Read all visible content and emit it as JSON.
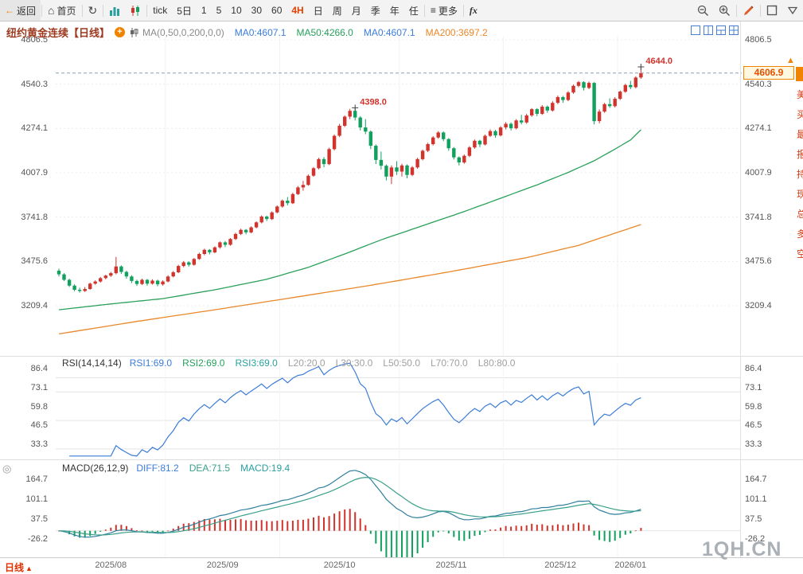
{
  "colors": {
    "up": "#d0342c",
    "down": "#12a05e",
    "ma50": "#2aa05a",
    "ma200": "#e8882a",
    "rsi": "#3b7dd8",
    "diff": "#2f7f9e",
    "dea": "#3aa08a",
    "price_line": "#8fa0ac",
    "annotation": "#d0342c",
    "accent": "#f08300"
  },
  "toolbar": {
    "back": "返回",
    "home": "首页",
    "periods": [
      {
        "t": "tick"
      },
      {
        "t": "5日"
      },
      {
        "t": "1"
      },
      {
        "t": "5"
      },
      {
        "t": "10"
      },
      {
        "t": "30"
      },
      {
        "t": "60"
      },
      {
        "t": "4H",
        "c": "#e04000"
      },
      {
        "t": "日"
      },
      {
        "t": "周"
      },
      {
        "t": "月"
      },
      {
        "t": "季"
      },
      {
        "t": "年"
      },
      {
        "t": "任"
      }
    ],
    "more": "更多",
    "fx": "fx"
  },
  "chart_header": {
    "title": "纽约黄金连续【日线】",
    "ma_label": "MA(0,50,0,200,0,0)",
    "ma_values": [
      {
        "t": "MA0:4607.1",
        "c": "#3b7dd8"
      },
      {
        "t": "MA50:4266.0",
        "c": "#27a05d"
      },
      {
        "t": "MA0:4607.1",
        "c": "#3b7dd8"
      },
      {
        "t": "MA200:3697.2",
        "c": "#e8882a"
      }
    ]
  },
  "main_axis": {
    "labels": [
      "4806.5",
      "4540.3",
      "4274.1",
      "4007.9",
      "3741.8",
      "3475.6",
      "3209.4"
    ]
  },
  "rsi": {
    "name": "RSI(14,14,14)",
    "values": [
      {
        "t": "RSI1:69.0",
        "c": "#3b7dd8"
      },
      {
        "t": "RSI2:69.0",
        "c": "#27a05d"
      },
      {
        "t": "RSI3:69.0",
        "c": "#2aa0a0"
      },
      {
        "t": "L20:20.0",
        "c": "#a0a0a0"
      },
      {
        "t": "L30:30.0",
        "c": "#a0a0a0"
      },
      {
        "t": "L50:50.0",
        "c": "#a0a0a0"
      },
      {
        "t": "L70:70.0",
        "c": "#a0a0a0"
      },
      {
        "t": "L80:80.0",
        "c": "#a0a0a0"
      }
    ],
    "axis": [
      "86.4",
      "73.1",
      "59.8",
      "46.5",
      "33.3"
    ],
    "ref_levels": [
      80,
      70,
      50,
      30
    ]
  },
  "macd": {
    "name": "MACD(26,12,9)",
    "values": [
      {
        "t": "DIFF:81.2",
        "c": "#3b7dd8"
      },
      {
        "t": "DEA:71.5",
        "c": "#3aa08a"
      },
      {
        "t": "MACD:19.4",
        "c": "#2aa0a0"
      }
    ],
    "axis": [
      "164.7",
      "101.1",
      "37.5",
      "-26.2"
    ]
  },
  "current_price": "4606.9",
  "watermark": "1QH.CN",
  "bottom": {
    "period_tab": "日线",
    "period_tab_arrow": "▲"
  },
  "right_strip": {
    "chars": [
      "美",
      "买",
      "最",
      "报",
      "持",
      "现",
      "总",
      "多",
      "空"
    ]
  },
  "chart_data": {
    "type": "candlestick",
    "symbol": "纽约黄金连续",
    "period": "日线",
    "last_price": 4606.9,
    "annotations": [
      {
        "index": 57,
        "price": 4398.0,
        "label": "4398.0"
      },
      {
        "index": 112,
        "price": 4644.0,
        "label": "4644.0"
      }
    ],
    "months": [
      {
        "label": "2025/08",
        "start": 0,
        "end": 20
      },
      {
        "label": "2025/09",
        "start": 21,
        "end": 42
      },
      {
        "label": "2025/10",
        "start": 43,
        "end": 65
      },
      {
        "label": "2025/11",
        "start": 66,
        "end": 85
      },
      {
        "label": "2025/12",
        "start": 86,
        "end": 107
      },
      {
        "label": "2026/01",
        "start": 108,
        "end": 112
      }
    ],
    "ma50_points": [
      [
        0,
        3185
      ],
      [
        10,
        3220
      ],
      [
        20,
        3252
      ],
      [
        30,
        3305
      ],
      [
        40,
        3368
      ],
      [
        48,
        3440
      ],
      [
        55,
        3520
      ],
      [
        62,
        3605
      ],
      [
        70,
        3690
      ],
      [
        78,
        3775
      ],
      [
        85,
        3855
      ],
      [
        92,
        3935
      ],
      [
        98,
        4010
      ],
      [
        103,
        4080
      ],
      [
        107,
        4150
      ],
      [
        110,
        4205
      ],
      [
        112,
        4266
      ]
    ],
    "ma200_points": [
      [
        0,
        3040
      ],
      [
        15,
        3115
      ],
      [
        30,
        3185
      ],
      [
        45,
        3258
      ],
      [
        60,
        3332
      ],
      [
        75,
        3412
      ],
      [
        90,
        3498
      ],
      [
        100,
        3572
      ],
      [
        107,
        3645
      ],
      [
        112,
        3697
      ]
    ],
    "candles": [
      [
        3420,
        3432,
        3385,
        3398
      ],
      [
        3398,
        3405,
        3358,
        3365
      ],
      [
        3365,
        3372,
        3322,
        3330
      ],
      [
        3330,
        3338,
        3296,
        3305
      ],
      [
        3305,
        3318,
        3288,
        3298
      ],
      [
        3298,
        3322,
        3292,
        3310
      ],
      [
        3310,
        3348,
        3305,
        3342
      ],
      [
        3342,
        3362,
        3335,
        3355
      ],
      [
        3355,
        3382,
        3348,
        3375
      ],
      [
        3375,
        3396,
        3368,
        3390
      ],
      [
        3390,
        3412,
        3382,
        3405
      ],
      [
        3405,
        3502,
        3398,
        3445
      ],
      [
        3445,
        3452,
        3400,
        3412
      ],
      [
        3412,
        3420,
        3372,
        3385
      ],
      [
        3385,
        3392,
        3345,
        3358
      ],
      [
        3358,
        3366,
        3328,
        3340
      ],
      [
        3340,
        3372,
        3334,
        3365
      ],
      [
        3365,
        3370,
        3330,
        3342
      ],
      [
        3342,
        3368,
        3336,
        3360
      ],
      [
        3360,
        3366,
        3326,
        3338
      ],
      [
        3338,
        3362,
        3330,
        3355
      ],
      [
        3355,
        3392,
        3350,
        3385
      ],
      [
        3385,
        3418,
        3380,
        3410
      ],
      [
        3410,
        3455,
        3405,
        3448
      ],
      [
        3448,
        3478,
        3440,
        3470
      ],
      [
        3470,
        3476,
        3444,
        3455
      ],
      [
        3455,
        3496,
        3450,
        3490
      ],
      [
        3490,
        3528,
        3485,
        3520
      ],
      [
        3520,
        3552,
        3512,
        3545
      ],
      [
        3545,
        3550,
        3518,
        3530
      ],
      [
        3530,
        3566,
        3524,
        3560
      ],
      [
        3560,
        3596,
        3552,
        3590
      ],
      [
        3590,
        3598,
        3562,
        3575
      ],
      [
        3575,
        3616,
        3570,
        3610
      ],
      [
        3610,
        3648,
        3604,
        3640
      ],
      [
        3640,
        3672,
        3634,
        3665
      ],
      [
        3665,
        3670,
        3638,
        3650
      ],
      [
        3650,
        3686,
        3644,
        3680
      ],
      [
        3680,
        3716,
        3674,
        3710
      ],
      [
        3710,
        3752,
        3704,
        3745
      ],
      [
        3745,
        3750,
        3718,
        3730
      ],
      [
        3730,
        3776,
        3724,
        3770
      ],
      [
        3770,
        3812,
        3764,
        3805
      ],
      [
        3805,
        3848,
        3798,
        3840
      ],
      [
        3840,
        3862,
        3812,
        3825
      ],
      [
        3825,
        3888,
        3820,
        3880
      ],
      [
        3880,
        3928,
        3874,
        3920
      ],
      [
        3920,
        3958,
        3900,
        3935
      ],
      [
        3935,
        3998,
        3930,
        3990
      ],
      [
        3990,
        4042,
        3984,
        4035
      ],
      [
        4035,
        4098,
        4028,
        4090
      ],
      [
        4090,
        4102,
        4040,
        4060
      ],
      [
        4060,
        4158,
        4054,
        4150
      ],
      [
        4150,
        4238,
        4142,
        4230
      ],
      [
        4230,
        4302,
        4222,
        4290
      ],
      [
        4290,
        4352,
        4282,
        4345
      ],
      [
        4345,
        4392,
        4330,
        4380
      ],
      [
        4380,
        4398,
        4322,
        4340
      ],
      [
        4340,
        4348,
        4262,
        4280
      ],
      [
        4280,
        4330,
        4240,
        4255
      ],
      [
        4255,
        4262,
        4150,
        4170
      ],
      [
        4170,
        4178,
        4060,
        4085
      ],
      [
        4085,
        4135,
        4028,
        4050
      ],
      [
        4050,
        4058,
        3962,
        3985
      ],
      [
        3985,
        4052,
        3940,
        4040
      ],
      [
        4040,
        4078,
        3995,
        4015
      ],
      [
        4015,
        4062,
        3985,
        4052
      ],
      [
        4052,
        4058,
        3975,
        3995
      ],
      [
        3995,
        4048,
        3988,
        4040
      ],
      [
        4040,
        4098,
        4032,
        4090
      ],
      [
        4090,
        4148,
        4082,
        4140
      ],
      [
        4140,
        4188,
        4132,
        4180
      ],
      [
        4180,
        4228,
        4172,
        4220
      ],
      [
        4220,
        4258,
        4212,
        4250
      ],
      [
        4250,
        4256,
        4198,
        4210
      ],
      [
        4210,
        4216,
        4140,
        4155
      ],
      [
        4155,
        4162,
        4088,
        4100
      ],
      [
        4100,
        4106,
        4052,
        4070
      ],
      [
        4070,
        4118,
        4062,
        4110
      ],
      [
        4110,
        4168,
        4102,
        4160
      ],
      [
        4160,
        4208,
        4152,
        4200
      ],
      [
        4200,
        4206,
        4162,
        4178
      ],
      [
        4178,
        4238,
        4172,
        4230
      ],
      [
        4230,
        4268,
        4222,
        4258
      ],
      [
        4258,
        4266,
        4218,
        4232
      ],
      [
        4232,
        4288,
        4226,
        4280
      ],
      [
        4280,
        4312,
        4268,
        4302
      ],
      [
        4302,
        4310,
        4262,
        4275
      ],
      [
        4275,
        4330,
        4268,
        4322
      ],
      [
        4322,
        4356,
        4298,
        4310
      ],
      [
        4310,
        4362,
        4302,
        4352
      ],
      [
        4352,
        4396,
        4344,
        4390
      ],
      [
        4390,
        4396,
        4348,
        4362
      ],
      [
        4362,
        4415,
        4355,
        4405
      ],
      [
        4405,
        4412,
        4368,
        4382
      ],
      [
        4382,
        4438,
        4375,
        4428
      ],
      [
        4428,
        4472,
        4420,
        4462
      ],
      [
        4462,
        4470,
        4428,
        4445
      ],
      [
        4445,
        4498,
        4438,
        4490
      ],
      [
        4490,
        4538,
        4482,
        4530
      ],
      [
        4530,
        4560,
        4522,
        4552
      ],
      [
        4552,
        4558,
        4502,
        4518
      ],
      [
        4518,
        4556,
        4510,
        4548
      ],
      [
        4548,
        4552,
        4298,
        4318
      ],
      [
        4318,
        4388,
        4305,
        4375
      ],
      [
        4375,
        4428,
        4368,
        4420
      ],
      [
        4420,
        4455,
        4398,
        4408
      ],
      [
        4408,
        4462,
        4400,
        4452
      ],
      [
        4452,
        4502,
        4444,
        4495
      ],
      [
        4495,
        4542,
        4488,
        4535
      ],
      [
        4535,
        4560,
        4510,
        4522
      ],
      [
        4522,
        4588,
        4515,
        4580
      ],
      [
        4580,
        4644,
        4572,
        4606.9
      ]
    ]
  }
}
